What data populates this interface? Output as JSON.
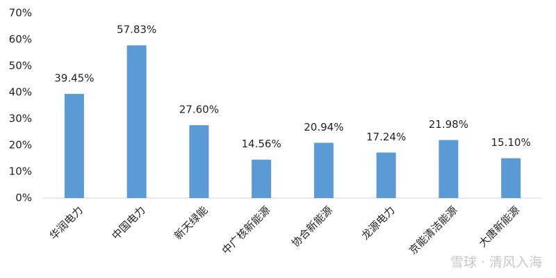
{
  "chart_data": {
    "type": "bar",
    "categories": [
      "华润电力",
      "中国电力",
      "新天绿能",
      "中广核新能源",
      "协合新能源",
      "龙源电力",
      "京能清洁能源",
      "大唐新能源"
    ],
    "values": [
      39.45,
      57.83,
      27.6,
      14.56,
      20.94,
      17.24,
      21.98,
      15.1
    ],
    "value_labels": [
      "39.45%",
      "57.83%",
      "27.60%",
      "14.56%",
      "20.94%",
      "17.24%",
      "21.98%",
      "15.10%"
    ],
    "color": "#5b9bd5",
    "ylim": [
      0,
      70
    ],
    "yticks": [
      {
        "value": 0,
        "label": "0%"
      },
      {
        "value": 10,
        "label": "10%"
      },
      {
        "value": 20,
        "label": "20%"
      },
      {
        "value": 30,
        "label": "30%"
      },
      {
        "value": 40,
        "label": "40%"
      },
      {
        "value": 50,
        "label": "50%"
      },
      {
        "value": 60,
        "label": "60%"
      },
      {
        "value": 70,
        "label": "70%"
      }
    ],
    "grid": false,
    "watermark": "雪球 · 清风入海"
  }
}
